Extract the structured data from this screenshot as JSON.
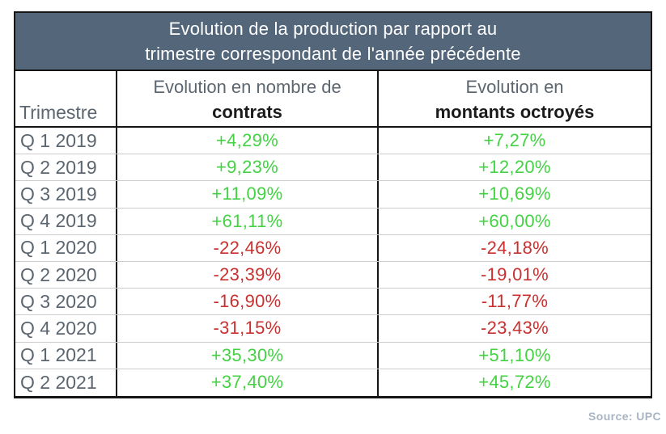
{
  "title": {
    "line1": "Evolution de la production par rapport au",
    "line2": "trimestre correspondant de l'année précédente"
  },
  "columns": {
    "quarter": "Trimestre",
    "contracts_line1": "Evolution en nombre de",
    "contracts_line2": "contrats",
    "amounts_line1": "Evolution en",
    "amounts_line2": "montants octroyés"
  },
  "rows": [
    {
      "quarter": "Q 1 2019",
      "contracts": "+4,29%",
      "amounts": "+7,27%"
    },
    {
      "quarter": "Q 2 2019",
      "contracts": "+9,23%",
      "amounts": "+12,20%"
    },
    {
      "quarter": "Q 3 2019",
      "contracts": "+11,09%",
      "amounts": "+10,69%"
    },
    {
      "quarter": "Q 4 2019",
      "contracts": "+61,11%",
      "amounts": "+60,00%"
    },
    {
      "quarter": "Q 1 2020",
      "contracts": "-22,46%",
      "amounts": "-24,18%"
    },
    {
      "quarter": "Q 2 2020",
      "contracts": "-23,39%",
      "amounts": "-19,01%"
    },
    {
      "quarter": "Q 3 2020",
      "contracts": "-16,90%",
      "amounts": "-11,77%"
    },
    {
      "quarter": "Q 4 2020",
      "contracts": "-31,15%",
      "amounts": "-23,43%"
    },
    {
      "quarter": "Q 1 2021",
      "contracts": "+35,30%",
      "amounts": "+51,10%"
    },
    {
      "quarter": "Q 2 2021",
      "contracts": "+37,40%",
      "amounts": "+45,72%"
    }
  ],
  "source": "Source: UPC",
  "colors": {
    "positive": "#44d244",
    "negative": "#c83130",
    "title_bg": "#54677a",
    "title_text": "#ffffff",
    "label_text": "#5c6670",
    "source_text": "#a9b5c3"
  },
  "chart_data": {
    "type": "table",
    "title": "Evolution de la production par rapport au trimestre correspondant de l'année précédente",
    "columns": [
      "Trimestre",
      "Evolution en nombre de contrats",
      "Evolution en montants octroyés"
    ],
    "categories": [
      "Q 1 2019",
      "Q 2 2019",
      "Q 3 2019",
      "Q 4 2019",
      "Q 1 2020",
      "Q 2 2020",
      "Q 3 2020",
      "Q 4 2020",
      "Q 1 2021",
      "Q 2 2021"
    ],
    "series": [
      {
        "name": "Evolution en nombre de contrats",
        "values": [
          4.29,
          9.23,
          11.09,
          61.11,
          -22.46,
          -23.39,
          -16.9,
          -31.15,
          35.3,
          37.4
        ]
      },
      {
        "name": "Evolution en montants octroyés",
        "values": [
          7.27,
          12.2,
          10.69,
          60.0,
          -24.18,
          -19.01,
          -11.77,
          -23.43,
          51.1,
          45.72
        ]
      }
    ],
    "unit": "%",
    "value_color_rule": "positive values green, negative values red",
    "source": "Source: UPC"
  }
}
